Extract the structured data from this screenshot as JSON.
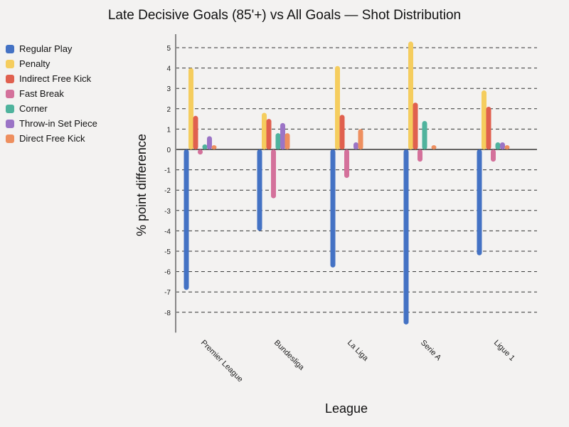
{
  "chart_data": {
    "type": "bar",
    "title": "Late Decisive Goals (85'+) vs All Goals — Shot Distribution",
    "xlabel": "League",
    "ylabel": "% point difference",
    "ylim": [
      -9,
      5.6
    ],
    "yticks": [
      5,
      4,
      3,
      2,
      1,
      0,
      -1,
      -2,
      -3,
      -4,
      -5,
      -6,
      -7,
      -8
    ],
    "grid": "horizontal dashed",
    "legend_position": "left",
    "categories": [
      "Premier League",
      "Bundesliga",
      "La Liga",
      "Serie A",
      "Ligue 1"
    ],
    "series": [
      {
        "name": "Regular Play",
        "color": "#4472c4",
        "values": [
          -6.9,
          -4.0,
          -5.8,
          -8.6,
          -5.2
        ]
      },
      {
        "name": "Penalty",
        "color": "#f5cd5e",
        "values": [
          4.0,
          1.8,
          4.1,
          5.3,
          2.9
        ]
      },
      {
        "name": "Indirect Free Kick",
        "color": "#e0604f",
        "values": [
          1.65,
          1.5,
          1.7,
          2.3,
          2.1
        ]
      },
      {
        "name": "Fast Break",
        "color": "#d4719b",
        "values": [
          -0.25,
          -2.4,
          -1.4,
          -0.6,
          -0.6
        ]
      },
      {
        "name": "Corner",
        "color": "#4fb39d",
        "values": [
          0.25,
          0.8,
          0,
          1.4,
          0.35
        ]
      },
      {
        "name": "Throw-in Set Piece",
        "color": "#9b74c6",
        "values": [
          0.65,
          1.3,
          0.35,
          0,
          0.35
        ]
      },
      {
        "name": "Direct Free Kick",
        "color": "#ee8f5f",
        "values": [
          0.15,
          0.8,
          1.0,
          0.15,
          0.15
        ]
      }
    ]
  }
}
